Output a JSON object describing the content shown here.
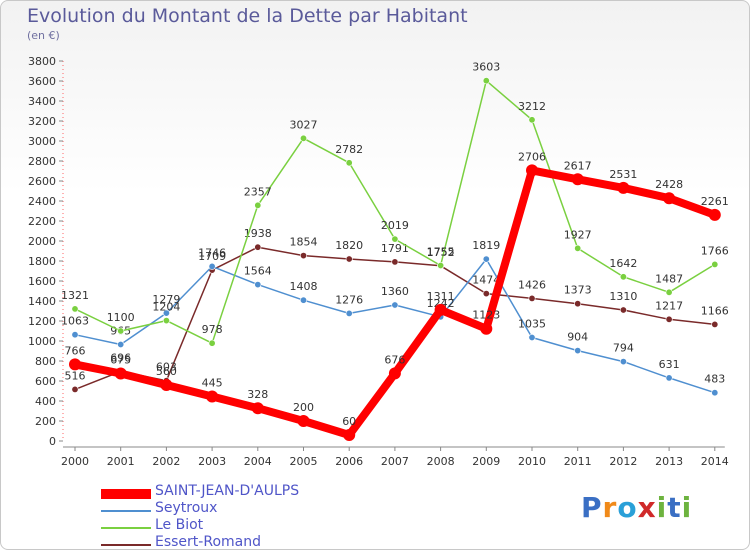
{
  "title": "Evolution du Montant de la Dette par Habitant",
  "subtitle": "(en €)",
  "logo_text": "Proxiti",
  "chart_data": {
    "type": "line",
    "title": "Evolution du Montant de la Dette par Habitant",
    "subtitle": "(en €)",
    "xlabel": "",
    "ylabel": "",
    "x": [
      "2000",
      "2001",
      "2002",
      "2003",
      "2004",
      "2005",
      "2006",
      "2007",
      "2008",
      "2009",
      "2010",
      "2011",
      "2012",
      "2013",
      "2014"
    ],
    "ylim": [
      0,
      3800
    ],
    "yticks": [
      0,
      200,
      400,
      600,
      800,
      1000,
      1200,
      1400,
      1600,
      1800,
      2000,
      2200,
      2400,
      2600,
      2800,
      3000,
      3200,
      3400,
      3600,
      3800
    ],
    "grid": false,
    "legend_position": "bottom-left",
    "series": [
      {
        "name": "Essert-Romand",
        "color": "#7a2a2a",
        "values": [
          516,
          696,
          603,
          1709,
          1938,
          1854,
          1820,
          1791,
          1752,
          1474,
          1426,
          1373,
          1310,
          1217,
          1166
        ]
      },
      {
        "name": "Seytroux",
        "color": "#4f8fd0",
        "values": [
          1063,
          965,
          1279,
          1746,
          1564,
          1408,
          1276,
          1360,
          1242,
          1819,
          1035,
          904,
          794,
          631,
          483
        ]
      },
      {
        "name": "Le Biot",
        "color": "#7ad040",
        "values": [
          1321,
          1100,
          1204,
          978,
          2357,
          3027,
          2782,
          2019,
          1755,
          3603,
          3212,
          1927,
          1642,
          1487,
          1766
        ]
      },
      {
        "name": "SAINT-JEAN-D'AULPS",
        "color": "#ff0000",
        "values": [
          766,
          675,
          560,
          445,
          328,
          200,
          60,
          676,
          1311,
          1123,
          2706,
          2617,
          2531,
          2428,
          2261
        ]
      }
    ]
  }
}
